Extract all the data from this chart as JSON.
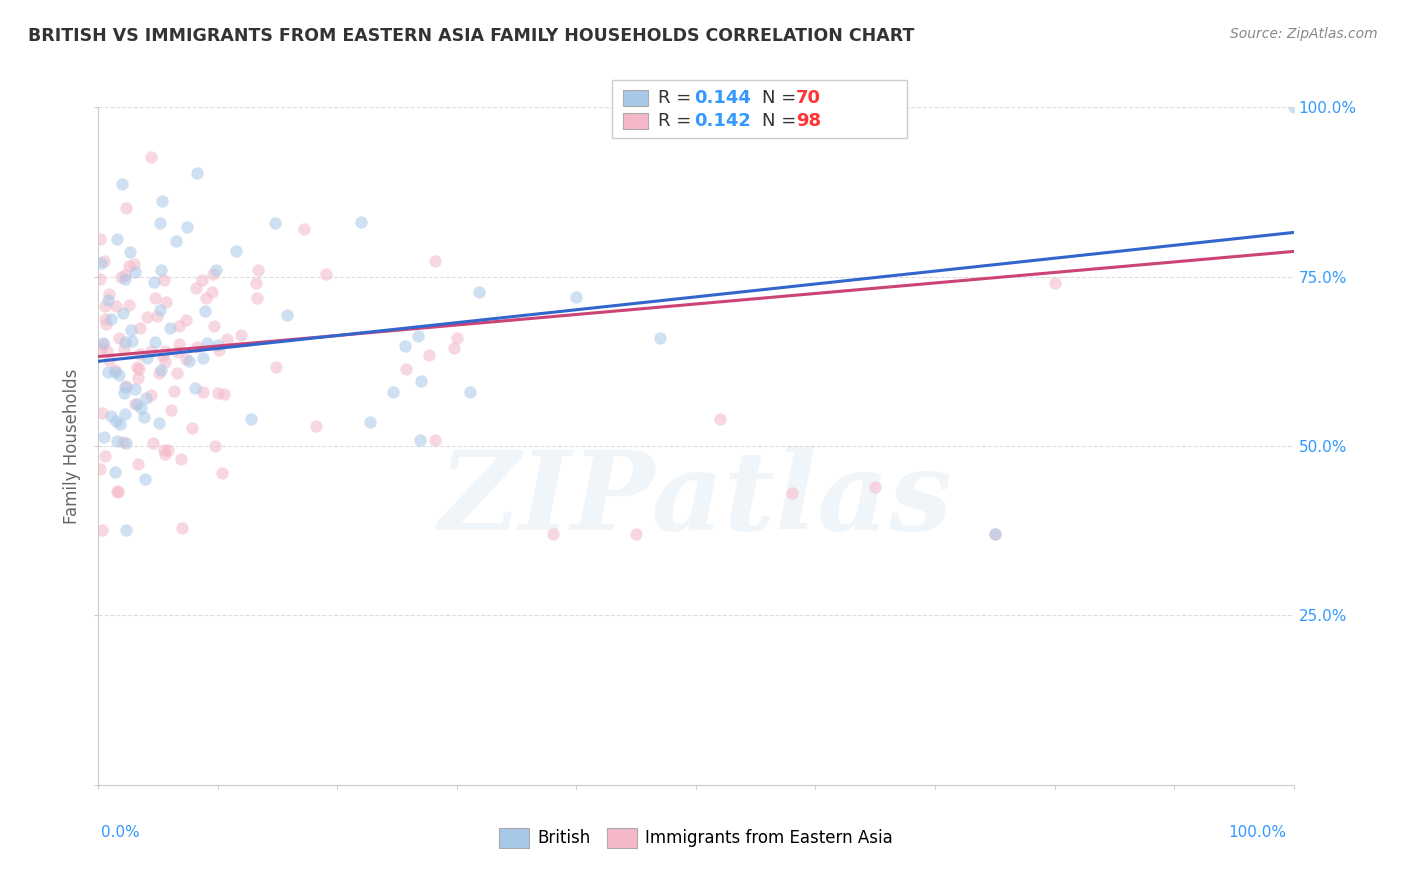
{
  "title": "BRITISH VS IMMIGRANTS FROM EASTERN ASIA FAMILY HOUSEHOLDS CORRELATION CHART",
  "source": "Source: ZipAtlas.com",
  "ylabel": "Family Households",
  "watermark": "ZIPatlas",
  "blue_color": "#a8c8e8",
  "pink_color": "#f4b8c8",
  "blue_line_color": "#3366cc",
  "pink_line_color": "#cc4477",
  "right_axis_color": "#3399ff",
  "grid_color": "#dddddd",
  "background_color": "#ffffff",
  "fig_width": 14.06,
  "fig_height": 8.92,
  "scatter_size": 80,
  "scatter_alpha": 0.55
}
